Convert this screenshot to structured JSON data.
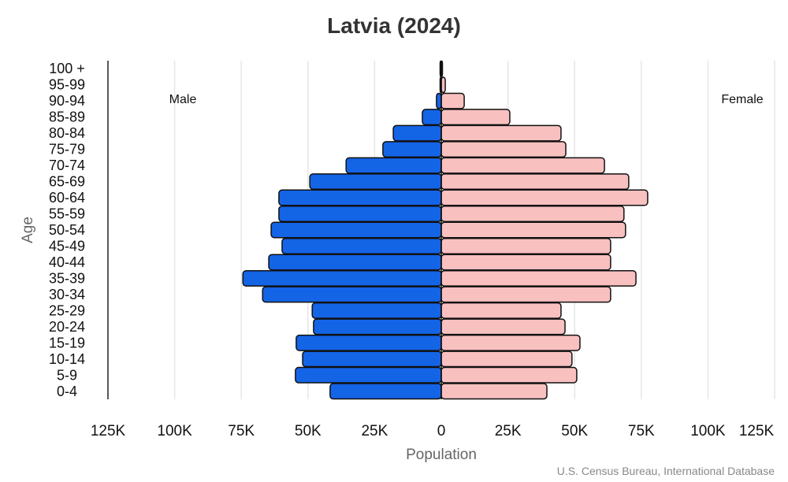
{
  "chart_data": {
    "type": "bar",
    "orientation": "horizontal-pyramid",
    "title": "Latvia (2024)",
    "xlabel": "Population",
    "ylabel": "Age",
    "source": "U.S. Census Bureau, International Database",
    "xlim": [
      -125000,
      125000
    ],
    "x_tick_labels": [
      "125K",
      "100K",
      "75K",
      "50K",
      "25K",
      "0",
      "25K",
      "50K",
      "75K",
      "100K",
      "125K"
    ],
    "x_ticks": [
      -125000,
      -100000,
      -75000,
      -50000,
      -25000,
      0,
      25000,
      50000,
      75000,
      100000,
      125000
    ],
    "grid": true,
    "categories": [
      "0-4",
      "5-9",
      "10-14",
      "15-19",
      "20-24",
      "25-29",
      "30-34",
      "35-39",
      "40-44",
      "45-49",
      "50-54",
      "55-59",
      "60-64",
      "65-69",
      "70-74",
      "75-79",
      "80-84",
      "85-89",
      "90-94",
      "95-99",
      "100 +"
    ],
    "series": [
      {
        "name": "Male",
        "color": "#1464e6",
        "values": [
          41700,
          54700,
          52000,
          54400,
          47900,
          48400,
          67000,
          74400,
          64700,
          59700,
          63800,
          60900,
          60900,
          49300,
          35700,
          21900,
          18000,
          7100,
          1800,
          300,
          50
        ]
      },
      {
        "name": "Female",
        "color": "#f9c0c0",
        "values": [
          39600,
          50800,
          49000,
          52000,
          46400,
          44900,
          63500,
          73000,
          63500,
          63500,
          69100,
          68500,
          77400,
          70300,
          61200,
          46700,
          44900,
          25700,
          8600,
          1500,
          300
        ]
      }
    ]
  }
}
